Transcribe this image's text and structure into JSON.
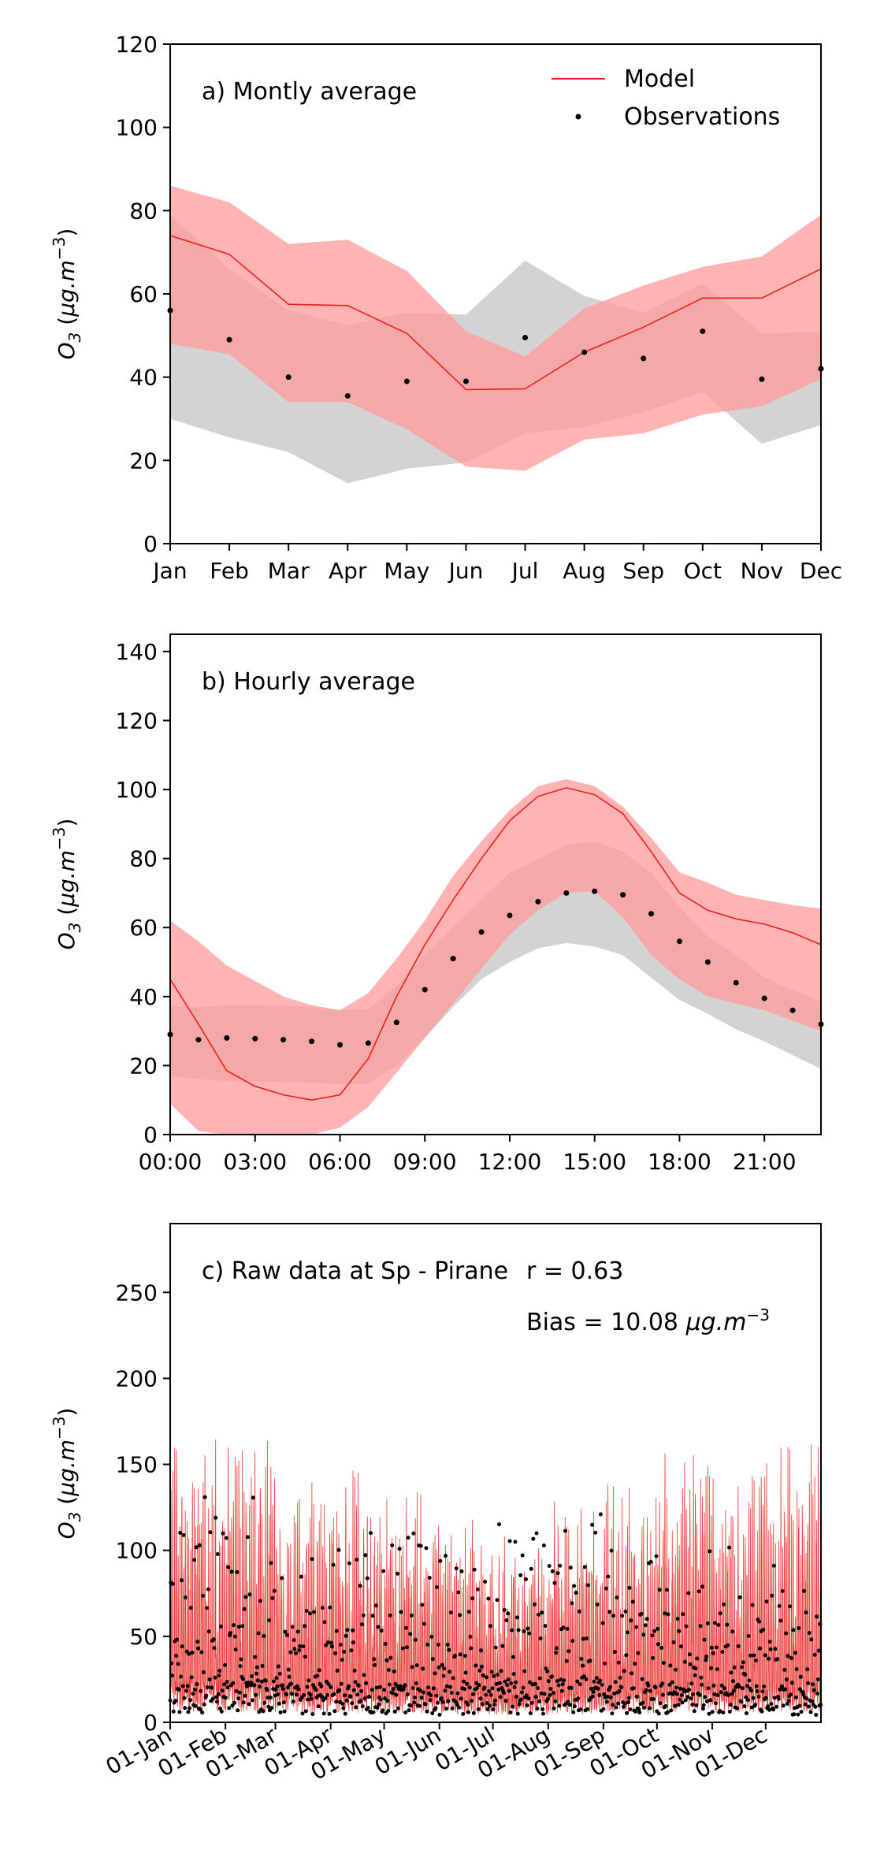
{
  "figure": {
    "legend": {
      "model_label": "Model",
      "obs_label": "Observations"
    },
    "colors": {
      "model_line": "#e8201c",
      "model_band": "#ff9a9a",
      "obs_band": "#c8c8c8",
      "obs_dot": "#000000"
    }
  },
  "chart_data": [
    {
      "type": "line",
      "title": "a) Montly average",
      "ylabel": "O3 (µg.m^-3)",
      "ylabel_parts": {
        "main": "O",
        "sub": "3",
        "mid": " (",
        "unit": "μg.m",
        "sup": "−3",
        "tail": ")"
      },
      "ylim": [
        0,
        120
      ],
      "yticks": [
        0,
        20,
        40,
        60,
        80,
        100,
        120
      ],
      "categories": [
        "Jan",
        "Feb",
        "Mar",
        "Apr",
        "May",
        "Jun",
        "Jul",
        "Aug",
        "Sep",
        "Oct",
        "Nov",
        "Dec"
      ],
      "legend": "top-right",
      "series": [
        {
          "name": "Model",
          "style": "line",
          "values": [
            74,
            69.5,
            57.5,
            57.2,
            50.5,
            37,
            37.2,
            46,
            52,
            59,
            59,
            66
          ],
          "band_low": [
            48,
            45.5,
            34,
            34,
            27.5,
            18.5,
            17.5,
            25,
            26.5,
            31,
            33,
            39.5
          ],
          "band_high": [
            86,
            82,
            72,
            73,
            65.5,
            51,
            45,
            56.5,
            62,
            66.5,
            69,
            79
          ]
        },
        {
          "name": "Observations",
          "style": "points",
          "values": [
            56,
            49,
            40,
            35.5,
            39,
            39,
            49.5,
            46,
            44.5,
            51,
            39.5,
            42
          ],
          "band_low": [
            30,
            25.5,
            22,
            14.5,
            18,
            19.5,
            26.5,
            28,
            31.5,
            36.5,
            24,
            28.5
          ],
          "band_high": [
            79,
            66,
            56,
            52.5,
            55.5,
            55,
            68,
            59.5,
            55.5,
            62.5,
            50.5,
            51
          ]
        }
      ]
    },
    {
      "type": "line",
      "title": "b) Hourly average",
      "ylabel": "O3 (µg.m^-3)",
      "ylabel_parts": {
        "main": "O",
        "sub": "3",
        "mid": " (",
        "unit": "μg.m",
        "sup": "−3",
        "tail": ")"
      },
      "ylim": [
        0,
        145
      ],
      "yticks": [
        0,
        20,
        40,
        60,
        80,
        100,
        120,
        140
      ],
      "xlim": [
        0,
        23
      ],
      "xticks": [
        0,
        3,
        6,
        9,
        12,
        15,
        18,
        21
      ],
      "xtick_labels": [
        "00:00",
        "03:00",
        "06:00",
        "09:00",
        "12:00",
        "15:00",
        "18:00",
        "21:00"
      ],
      "x": [
        0,
        1,
        2,
        3,
        4,
        5,
        6,
        7,
        8,
        9,
        10,
        11,
        12,
        13,
        14,
        15,
        16,
        17,
        18,
        19,
        20,
        21,
        22,
        23
      ],
      "series": [
        {
          "name": "Model",
          "style": "line",
          "values": [
            45,
            32,
            18.5,
            14,
            11.5,
            10,
            11.5,
            22,
            40,
            55,
            68,
            80,
            91,
            98,
            100.5,
            98.5,
            93,
            82,
            70,
            65,
            62.5,
            61,
            58.5,
            55
          ],
          "band_low": [
            9,
            1,
            0,
            0,
            0,
            0,
            2,
            8,
            18,
            28,
            38,
            48,
            58,
            65,
            70,
            70.5,
            63,
            52,
            45,
            40,
            38,
            36,
            33,
            30
          ],
          "band_high": [
            62,
            56,
            49,
            44.5,
            40,
            37.5,
            36,
            41,
            51,
            62,
            75,
            85,
            94,
            101,
            103,
            101,
            95,
            86,
            76,
            73,
            69.5,
            68,
            66.5,
            65.5
          ]
        },
        {
          "name": "Observations",
          "style": "points",
          "values": [
            29,
            27.5,
            28,
            27.8,
            27.5,
            27,
            26,
            26.5,
            32.5,
            42,
            51,
            58.7,
            63.5,
            67.5,
            70,
            70.5,
            69.5,
            64,
            56,
            50,
            44,
            39.5,
            36,
            32
          ],
          "band_low": [
            17,
            16,
            15.5,
            15.3,
            15.2,
            15,
            14.5,
            14.8,
            20,
            28,
            37,
            45,
            50,
            54,
            55.5,
            54.5,
            52,
            45.5,
            39,
            35,
            30.5,
            27,
            23,
            19
          ],
          "band_high": [
            37,
            37,
            37.5,
            37.5,
            37.3,
            37,
            36,
            36.5,
            43,
            52,
            60,
            68,
            76,
            80,
            84,
            85,
            82,
            76,
            66,
            57.5,
            52,
            45.5,
            42,
            38.5
          ]
        }
      ]
    },
    {
      "type": "scatter",
      "title": "c) Raw data at Sp - Pirane",
      "stat_r": "r = 0.63",
      "stat_bias_prefix": "Bias = 10.08 ",
      "stat_bias_unit": "μg.m",
      "stat_bias_sup": "−3",
      "ylabel": "O3 (µg.m^-3)",
      "ylabel_parts": {
        "main": "O",
        "sub": "3",
        "mid": " (",
        "unit": "μg.m",
        "sup": "−3",
        "tail": ")"
      },
      "ylim": [
        0,
        290
      ],
      "yticks": [
        0,
        50,
        100,
        150,
        200,
        250
      ],
      "xlim": [
        "01-Jan",
        "31-Dec"
      ],
      "xtick_labels": [
        "01-Jan",
        "01-Feb",
        "01-Mar",
        "01-Apr",
        "01-May",
        "01-Jun",
        "01-Jul",
        "01-Aug",
        "01-Sep",
        "01-Oct",
        "01-Nov",
        "01-Dec"
      ],
      "monthly_envelope": {
        "months": [
          "Jan",
          "Feb",
          "Mar",
          "Apr",
          "May",
          "Jun",
          "Jul",
          "Aug",
          "Sep",
          "Oct",
          "Nov",
          "Dec"
        ],
        "model_typical_max": [
          170,
          165,
          145,
          150,
          135,
          120,
          110,
          130,
          140,
          160,
          150,
          165
        ],
        "obs_typical_max": [
          140,
          135,
          115,
          120,
          115,
          110,
          120,
          135,
          110,
          115,
          110,
          105
        ]
      },
      "series": [
        {
          "name": "Model",
          "style": "line",
          "description_values": "hourly series"
        },
        {
          "name": "Observations",
          "style": "points",
          "description_values": "hourly series"
        }
      ]
    }
  ]
}
